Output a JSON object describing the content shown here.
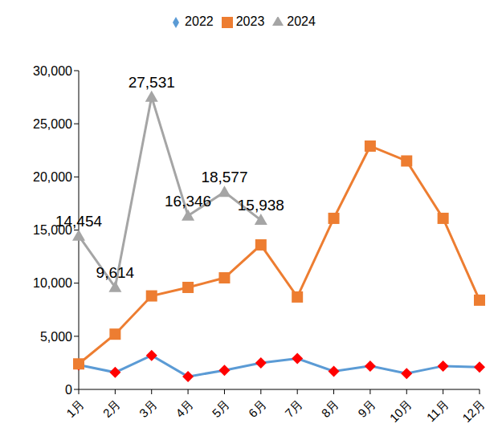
{
  "chart_data": {
    "type": "line",
    "categories": [
      "1月",
      "2月",
      "3月",
      "4月",
      "5月",
      "6月",
      "7月",
      "8月",
      "9月",
      "10月",
      "11月",
      "12月"
    ],
    "series": [
      {
        "name": "2022",
        "color": "#5B9BD5",
        "marker": "diamond",
        "values": [
          2300,
          1600,
          3200,
          1200,
          1800,
          2500,
          2900,
          1700,
          2200,
          1500,
          2200,
          2100
        ]
      },
      {
        "name": "2023",
        "color": "#ED7D31",
        "marker": "square",
        "values": [
          2400,
          5200,
          8800,
          9600,
          10500,
          13600,
          8700,
          16100,
          22900,
          21500,
          16100,
          8400
        ]
      },
      {
        "name": "2024",
        "color": "#A5A5A5",
        "marker": "triangle",
        "data_labels": true,
        "values": [
          14454,
          9614,
          27531,
          16346,
          18577,
          15938,
          null,
          null,
          null,
          null,
          null,
          null
        ],
        "value_labels": [
          "14,454",
          "9,614",
          "27,531",
          "16,346",
          "18,577",
          "15,938",
          null,
          null,
          null,
          null,
          null,
          null
        ]
      }
    ],
    "ylim": [
      0,
      30000
    ],
    "yticks": [
      0,
      {
        "value": 5000,
        "label": "5,000"
      },
      {
        "value": 10000,
        "label": "10,000"
      },
      {
        "value": 15000,
        "label": "15,000"
      },
      {
        "value": 20000,
        "label": "20,000"
      },
      {
        "value": 25000,
        "label": "25,000"
      },
      {
        "value": 30000,
        "label": "30,000"
      }
    ],
    "grid": false,
    "legend": "top"
  }
}
